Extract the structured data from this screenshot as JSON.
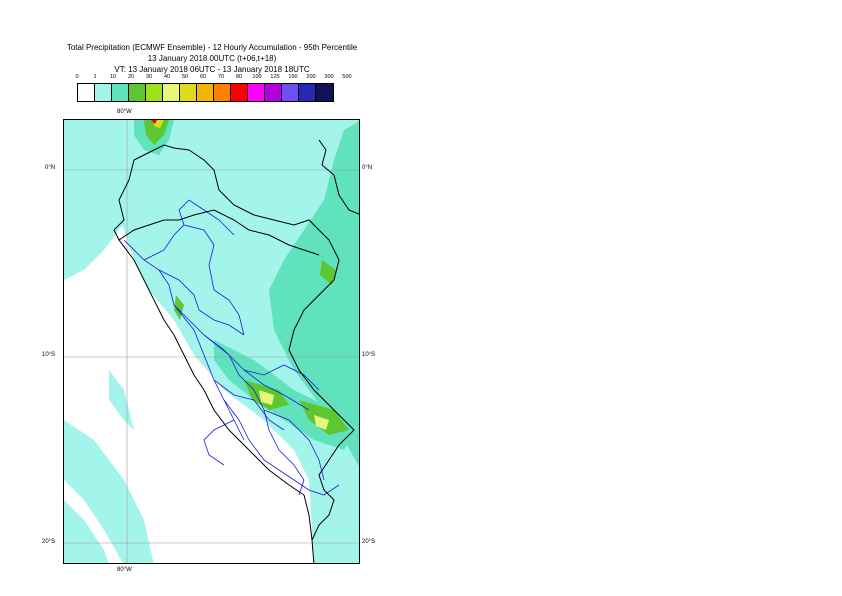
{
  "title": {
    "line1": "Total Precipitation (ECMWF Ensemble) - 12 Hourly Accumulation - 95th Percentile",
    "line2": "13 January 2018 00UTC (t+06,t+18)",
    "line3": "VT: 13 January 2018 06UTC - 13 January 2018 18UTC"
  },
  "legend": {
    "thresholds": [
      "0",
      "1",
      "10",
      "20",
      "30",
      "40",
      "50",
      "60",
      "70",
      "80",
      "100",
      "125",
      "150",
      "200",
      "300",
      "500"
    ],
    "colors": [
      "#ffffff",
      "#a3f5ec",
      "#60e3bc",
      "#5cc730",
      "#a2e01c",
      "#e6f77a",
      "#dcdc19",
      "#f5b400",
      "#ff7f00",
      "#ff0000",
      "#ff00ff",
      "#b400e0",
      "#6e50f0",
      "#2828b4",
      "#12125a"
    ]
  },
  "map": {
    "lat_labels": [
      "0°N",
      "10°S",
      "20°S"
    ],
    "lon_labels": [
      "80°W"
    ]
  }
}
